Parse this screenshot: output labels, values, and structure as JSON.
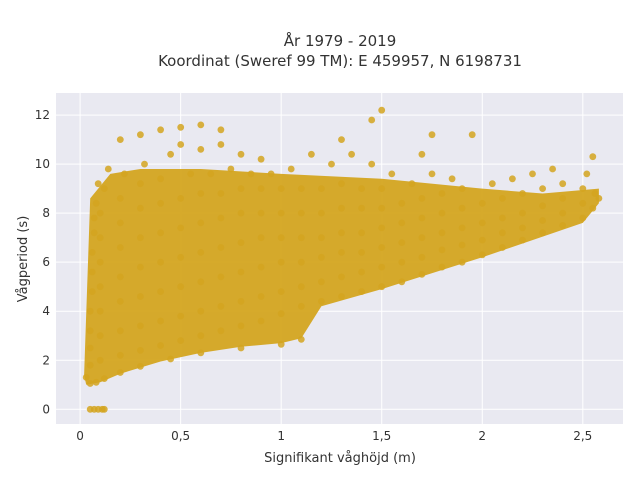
{
  "chart_data": {
    "type": "scatter",
    "title_lines": [
      "År 1979 - 2019",
      "Koordinat (Sweref 99 TM): E 459957, N 6198731"
    ],
    "xlabel": "Signifikant våghöjd (m)",
    "ylabel": "Vågperiod (s)",
    "xlim": [
      -0.12,
      2.7
    ],
    "ylim": [
      -0.6,
      12.9
    ],
    "x_ticks": [
      0,
      0.5,
      1,
      1.5,
      2,
      2.5
    ],
    "x_tick_labels": [
      "0",
      "0,5",
      "1",
      "1,5",
      "2",
      "2,5"
    ],
    "y_ticks": [
      0,
      2,
      4,
      6,
      8,
      10,
      12
    ],
    "y_tick_labels": [
      "0",
      "2",
      "4",
      "6",
      "8",
      "10",
      "12"
    ],
    "grid": true,
    "legend": "none",
    "colors": {
      "marker": "#D4A520",
      "plot_background": "#E9E9F1",
      "grid": "#ffffff"
    },
    "series": [
      {
        "points": [
          [
            0.05,
            0
          ],
          [
            0.07,
            0
          ],
          [
            0.09,
            0
          ],
          [
            0.11,
            0
          ],
          [
            0.12,
            0
          ],
          [
            0.03,
            1.3
          ],
          [
            0.05,
            1.05
          ],
          [
            0.08,
            1.1
          ],
          [
            0.12,
            1.25
          ],
          [
            0.2,
            1.5
          ],
          [
            0.3,
            1.75
          ],
          [
            0.45,
            2.05
          ],
          [
            0.6,
            2.3
          ],
          [
            0.8,
            2.5
          ],
          [
            1.0,
            2.65
          ],
          [
            1.1,
            2.85
          ],
          [
            0.05,
            1.8
          ],
          [
            0.05,
            2.5
          ],
          [
            0.05,
            3.2
          ],
          [
            0.05,
            4.0
          ],
          [
            0.06,
            4.8
          ],
          [
            0.06,
            5.6
          ],
          [
            0.06,
            6.4
          ],
          [
            0.07,
            7.2
          ],
          [
            0.07,
            7.8
          ],
          [
            0.08,
            8.4
          ],
          [
            0.09,
            9.2
          ],
          [
            0.1,
            2.0
          ],
          [
            0.1,
            3.0
          ],
          [
            0.1,
            4.0
          ],
          [
            0.1,
            5.0
          ],
          [
            0.1,
            6.0
          ],
          [
            0.1,
            7.0
          ],
          [
            0.1,
            8.0
          ],
          [
            0.12,
            9.0
          ],
          [
            0.14,
            9.8
          ],
          [
            0.2,
            2.2
          ],
          [
            0.2,
            3.2
          ],
          [
            0.2,
            4.4
          ],
          [
            0.2,
            5.4
          ],
          [
            0.2,
            6.6
          ],
          [
            0.2,
            7.6
          ],
          [
            0.2,
            8.6
          ],
          [
            0.22,
            9.6
          ],
          [
            0.2,
            11.0
          ],
          [
            0.3,
            2.4
          ],
          [
            0.3,
            3.4
          ],
          [
            0.3,
            4.6
          ],
          [
            0.3,
            5.8
          ],
          [
            0.3,
            7.0
          ],
          [
            0.3,
            8.2
          ],
          [
            0.3,
            9.2
          ],
          [
            0.32,
            10.0
          ],
          [
            0.3,
            11.2
          ],
          [
            0.4,
            2.6
          ],
          [
            0.4,
            3.6
          ],
          [
            0.4,
            4.8
          ],
          [
            0.4,
            6.0
          ],
          [
            0.4,
            7.2
          ],
          [
            0.4,
            8.4
          ],
          [
            0.4,
            9.4
          ],
          [
            0.45,
            10.4
          ],
          [
            0.4,
            11.4
          ],
          [
            0.5,
            2.8
          ],
          [
            0.5,
            3.8
          ],
          [
            0.5,
            5.0
          ],
          [
            0.5,
            6.2
          ],
          [
            0.5,
            7.4
          ],
          [
            0.5,
            8.6
          ],
          [
            0.55,
            9.6
          ],
          [
            0.5,
            10.8
          ],
          [
            0.5,
            11.5
          ],
          [
            0.6,
            3.0
          ],
          [
            0.6,
            4.0
          ],
          [
            0.6,
            5.2
          ],
          [
            0.6,
            6.4
          ],
          [
            0.6,
            7.6
          ],
          [
            0.6,
            8.8
          ],
          [
            0.65,
            9.6
          ],
          [
            0.6,
            10.6
          ],
          [
            0.6,
            11.6
          ],
          [
            0.7,
            3.2
          ],
          [
            0.7,
            4.2
          ],
          [
            0.7,
            5.4
          ],
          [
            0.7,
            6.6
          ],
          [
            0.7,
            7.8
          ],
          [
            0.7,
            8.8
          ],
          [
            0.75,
            9.8
          ],
          [
            0.7,
            10.8
          ],
          [
            0.7,
            11.4
          ],
          [
            0.8,
            3.4
          ],
          [
            0.8,
            4.4
          ],
          [
            0.8,
            5.6
          ],
          [
            0.8,
            6.8
          ],
          [
            0.8,
            8.0
          ],
          [
            0.8,
            9.0
          ],
          [
            0.85,
            9.6
          ],
          [
            0.8,
            10.4
          ],
          [
            0.9,
            3.6
          ],
          [
            0.9,
            4.6
          ],
          [
            0.9,
            5.8
          ],
          [
            0.9,
            7.0
          ],
          [
            0.9,
            8.0
          ],
          [
            0.9,
            9.0
          ],
          [
            0.95,
            9.6
          ],
          [
            0.9,
            10.2
          ],
          [
            1.0,
            3.9
          ],
          [
            1.0,
            4.8
          ],
          [
            1.0,
            6.0
          ],
          [
            1.0,
            7.0
          ],
          [
            1.0,
            8.0
          ],
          [
            1.0,
            9.0
          ],
          [
            1.05,
            9.8
          ],
          [
            1.1,
            4.2
          ],
          [
            1.1,
            5.0
          ],
          [
            1.1,
            6.0
          ],
          [
            1.1,
            7.0
          ],
          [
            1.1,
            8.0
          ],
          [
            1.1,
            9.0
          ],
          [
            1.15,
            10.4
          ],
          [
            1.2,
            4.4
          ],
          [
            1.2,
            5.2
          ],
          [
            1.2,
            6.2
          ],
          [
            1.2,
            7.0
          ],
          [
            1.2,
            8.0
          ],
          [
            1.2,
            9.0
          ],
          [
            1.25,
            10.0
          ],
          [
            1.3,
            4.6
          ],
          [
            1.3,
            5.4
          ],
          [
            1.3,
            6.4
          ],
          [
            1.3,
            7.2
          ],
          [
            1.3,
            8.2
          ],
          [
            1.3,
            9.2
          ],
          [
            1.35,
            10.4
          ],
          [
            1.3,
            11.0
          ],
          [
            1.4,
            4.8
          ],
          [
            1.4,
            5.6
          ],
          [
            1.4,
            6.4
          ],
          [
            1.4,
            7.2
          ],
          [
            1.4,
            8.2
          ],
          [
            1.4,
            9.0
          ],
          [
            1.45,
            10.0
          ],
          [
            1.45,
            11.8
          ],
          [
            1.5,
            5.0
          ],
          [
            1.5,
            5.8
          ],
          [
            1.5,
            6.6
          ],
          [
            1.5,
            7.4
          ],
          [
            1.5,
            8.2
          ],
          [
            1.5,
            9.0
          ],
          [
            1.55,
            9.6
          ],
          [
            1.5,
            12.2
          ],
          [
            1.6,
            5.2
          ],
          [
            1.6,
            6.0
          ],
          [
            1.6,
            6.8
          ],
          [
            1.6,
            7.6
          ],
          [
            1.6,
            8.4
          ],
          [
            1.65,
            9.2
          ],
          [
            1.7,
            10.4
          ],
          [
            1.7,
            5.5
          ],
          [
            1.7,
            6.2
          ],
          [
            1.7,
            7.0
          ],
          [
            1.7,
            7.8
          ],
          [
            1.7,
            8.6
          ],
          [
            1.75,
            9.6
          ],
          [
            1.75,
            11.2
          ],
          [
            1.8,
            5.8
          ],
          [
            1.8,
            6.5
          ],
          [
            1.8,
            7.2
          ],
          [
            1.8,
            8.0
          ],
          [
            1.8,
            8.8
          ],
          [
            1.85,
            9.4
          ],
          [
            1.9,
            6.0
          ],
          [
            1.9,
            6.7
          ],
          [
            1.9,
            7.4
          ],
          [
            1.9,
            8.2
          ],
          [
            1.9,
            9.0
          ],
          [
            1.95,
            11.2
          ],
          [
            2.0,
            6.3
          ],
          [
            2.0,
            6.9
          ],
          [
            2.0,
            7.6
          ],
          [
            2.0,
            8.4
          ],
          [
            2.05,
            9.2
          ],
          [
            2.1,
            6.6
          ],
          [
            2.1,
            7.2
          ],
          [
            2.1,
            7.8
          ],
          [
            2.1,
            8.6
          ],
          [
            2.15,
            9.4
          ],
          [
            2.2,
            6.9
          ],
          [
            2.2,
            7.4
          ],
          [
            2.2,
            8.0
          ],
          [
            2.2,
            8.8
          ],
          [
            2.25,
            9.6
          ],
          [
            2.3,
            7.2
          ],
          [
            2.3,
            7.7
          ],
          [
            2.3,
            8.3
          ],
          [
            2.3,
            9.0
          ],
          [
            2.35,
            9.8
          ],
          [
            2.4,
            7.5
          ],
          [
            2.4,
            8.0
          ],
          [
            2.4,
            8.6
          ],
          [
            2.4,
            9.2
          ],
          [
            2.5,
            7.8
          ],
          [
            2.5,
            8.4
          ],
          [
            2.5,
            9.0
          ],
          [
            2.52,
            9.6
          ],
          [
            2.55,
            8.2
          ],
          [
            2.56,
            8.8
          ],
          [
            2.58,
            8.6
          ],
          [
            2.55,
            10.3
          ]
        ]
      }
    ]
  }
}
